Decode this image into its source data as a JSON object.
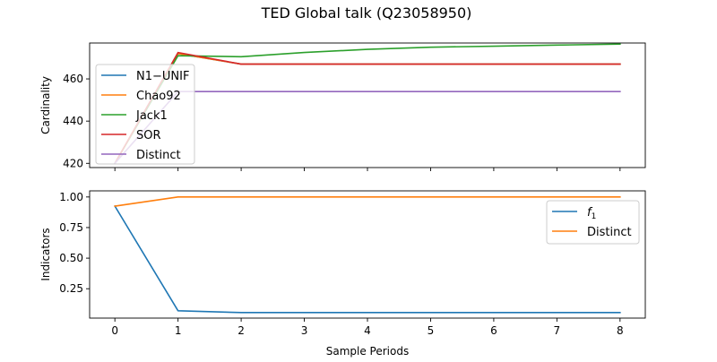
{
  "figure": {
    "title": "TED Global talk (Q23058950)"
  },
  "chart_data": [
    {
      "type": "line",
      "ylabel": "Cardinality",
      "xlabel": "",
      "xlim": [
        -0.4,
        8.4
      ],
      "ylim": [
        418,
        477
      ],
      "xticks": [
        0,
        1,
        2,
        3,
        4,
        5,
        6,
        7,
        8
      ],
      "yticks": [
        420,
        440,
        460
      ],
      "show_xtick_labels": false,
      "grid": false,
      "legend": "left",
      "series": [
        {
          "name": "N1−UNIF",
          "color": "#1f77b4",
          "x": [
            0,
            1,
            2,
            3,
            4,
            5,
            6,
            7,
            8
          ],
          "y": [
            420,
            472,
            467,
            467,
            467,
            467,
            467,
            467,
            467
          ]
        },
        {
          "name": "Chao92",
          "color": "#ff7f0e",
          "x": [
            0,
            1,
            2,
            3,
            4,
            5,
            6,
            7,
            8
          ],
          "y": [
            420,
            472,
            467,
            467,
            467,
            467,
            467,
            467,
            467
          ]
        },
        {
          "name": "Jack1",
          "color": "#2ca02c",
          "x": [
            0,
            1,
            2,
            3,
            4,
            5,
            6,
            7,
            8
          ],
          "y": [
            420,
            471,
            470.5,
            472.5,
            474,
            475,
            475.5,
            476,
            476.5
          ]
        },
        {
          "name": "SOR",
          "color": "#d62728",
          "x": [
            0,
            1,
            2,
            3,
            4,
            5,
            6,
            7,
            8
          ],
          "y": [
            420,
            472.5,
            467,
            467,
            467,
            467,
            467,
            467,
            467
          ]
        },
        {
          "name": "Distinct",
          "color": "#9467bd",
          "x": [
            0,
            1,
            2,
            3,
            4,
            5,
            6,
            7,
            8
          ],
          "y": [
            420,
            454,
            454,
            454,
            454,
            454,
            454,
            454,
            454
          ]
        }
      ]
    },
    {
      "type": "line",
      "ylabel": "Indicators",
      "xlabel": "Sample Periods",
      "xlim": [
        -0.4,
        8.4
      ],
      "ylim": [
        0.01,
        1.05
      ],
      "xticks": [
        0,
        1,
        2,
        3,
        4,
        5,
        6,
        7,
        8
      ],
      "yticks": [
        0.25,
        0.5,
        0.75,
        1.0
      ],
      "ytick_labels": [
        "0.25",
        "0.50",
        "0.75",
        "1.00"
      ],
      "show_xtick_labels": true,
      "grid": false,
      "legend": "top-right",
      "series": [
        {
          "name": "f",
          "name_subscript": "1",
          "color": "#1f77b4",
          "x": [
            0,
            1,
            2,
            3,
            4,
            5,
            6,
            7,
            8
          ],
          "y": [
            0.925,
            0.07,
            0.055,
            0.055,
            0.055,
            0.055,
            0.055,
            0.055,
            0.055
          ]
        },
        {
          "name": "Distinct",
          "color": "#ff7f0e",
          "x": [
            0,
            1,
            2,
            3,
            4,
            5,
            6,
            7,
            8
          ],
          "y": [
            0.925,
            1.0,
            1.0,
            1.0,
            1.0,
            1.0,
            1.0,
            1.0,
            1.0
          ]
        }
      ]
    }
  ]
}
